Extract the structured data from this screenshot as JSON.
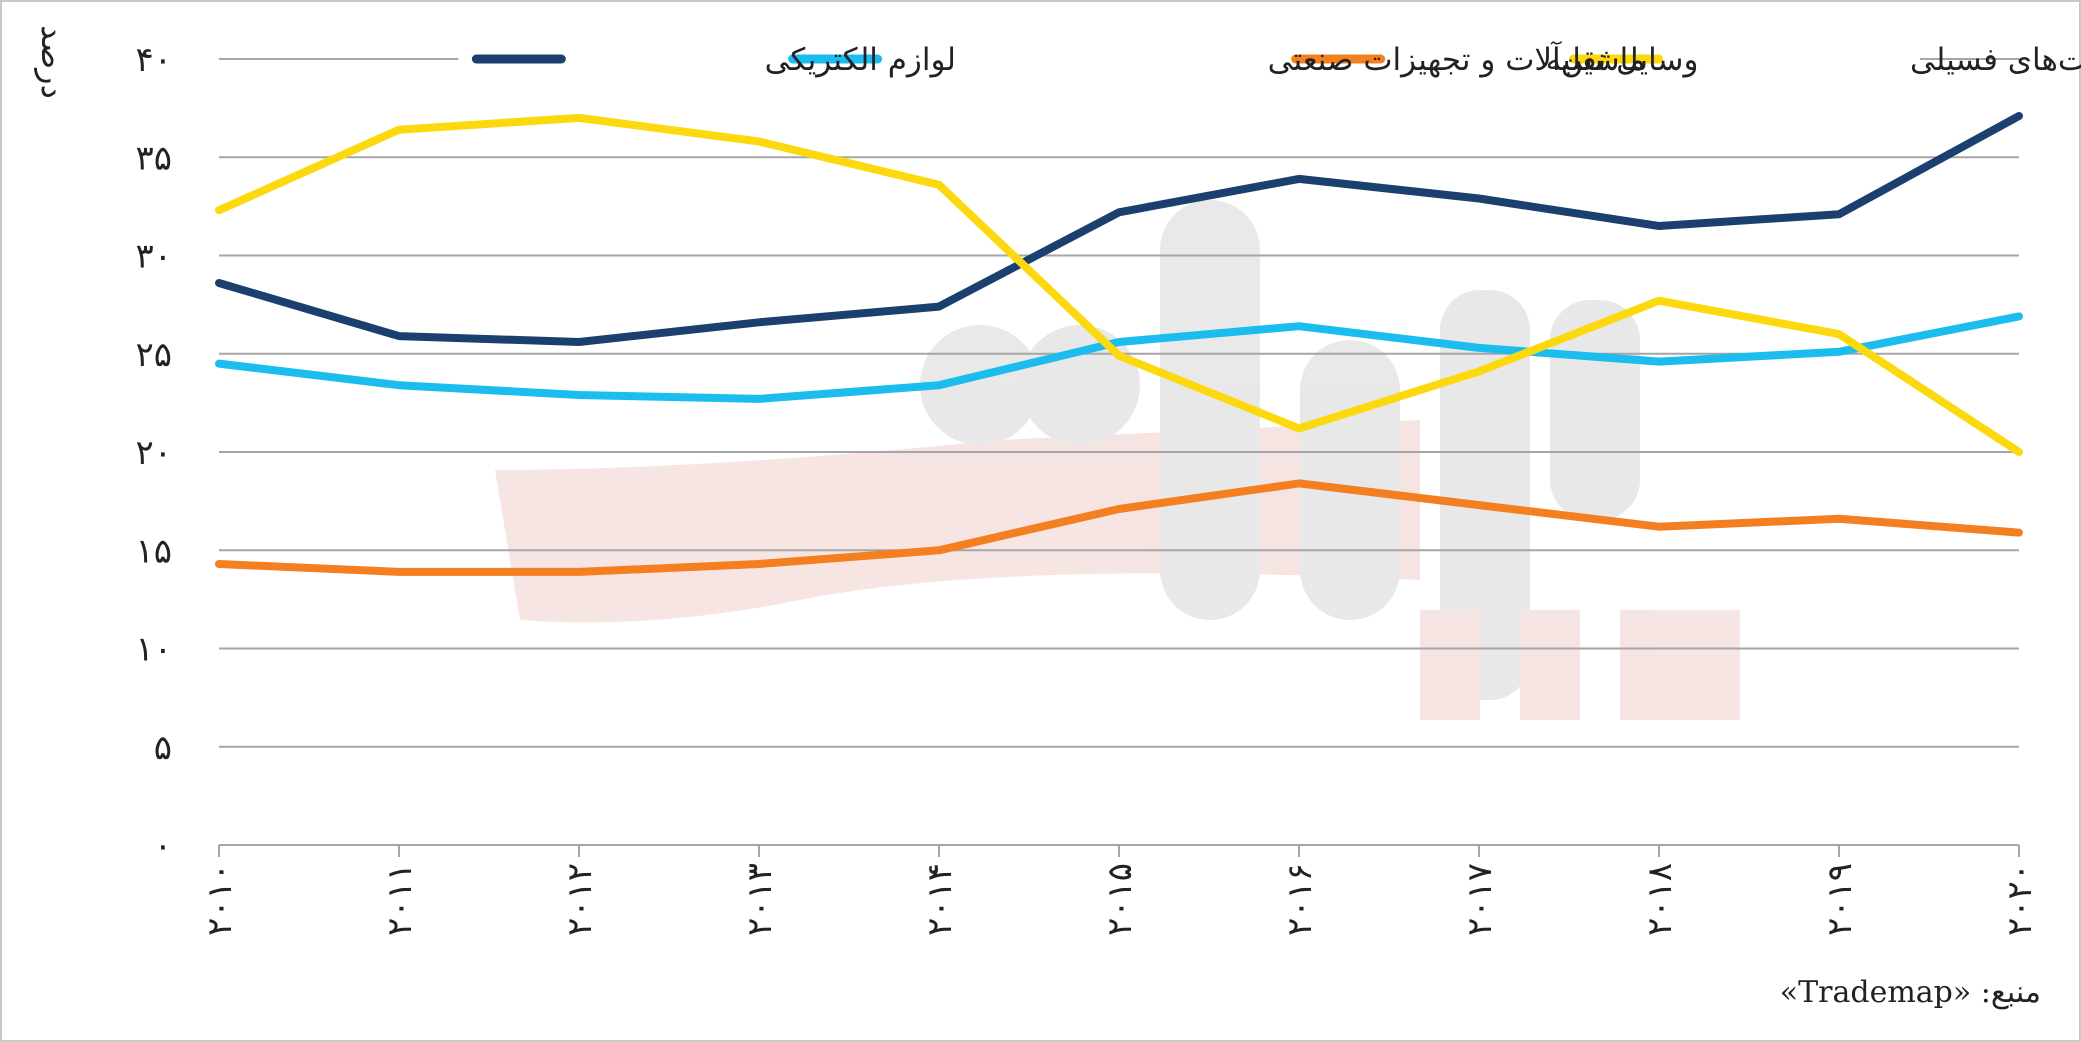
{
  "chart_data": {
    "type": "line",
    "title": "",
    "xlabel": "",
    "ylabel": "درصد",
    "ylim": [
      0,
      40
    ],
    "y_ticks": [
      0,
      5,
      10,
      15,
      20,
      25,
      30,
      35,
      40
    ],
    "y_tick_labels": [
      "۰",
      "۵",
      "۱۰",
      "۱۵",
      "۲۰",
      "۲۵",
      "۳۰",
      "۳۵",
      "۴۰"
    ],
    "x_labels": [
      "۲۰۱۰",
      "۲۰۱۱",
      "۲۰۱۲",
      "۲۰۱۳",
      "۲۰۱۴",
      "۲۰۱۵",
      "۲۰۱۶",
      "۲۰۱۷",
      "۲۰۱۸",
      "۲۰۱۹",
      "۲۰۲۰"
    ],
    "x": [
      2010,
      2011,
      2012,
      2013,
      2014,
      2015,
      2016,
      2017,
      2018,
      2019,
      2020
    ],
    "grid": true,
    "legend_position": "top",
    "series": [
      {
        "name": "لوازم الکتریکی",
        "color": "#1b3f6e",
        "values": [
          28.6,
          25.9,
          25.6,
          26.6,
          27.4,
          32.2,
          33.9,
          32.9,
          31.5,
          32.1,
          37.1
        ]
      },
      {
        "name": "ماشین‌آلات و تجهیزات صنعتی",
        "color": "#1bbcee",
        "values": [
          24.5,
          23.4,
          22.9,
          22.7,
          23.4,
          25.6,
          26.4,
          25.3,
          24.6,
          25.1,
          26.9
        ]
      },
      {
        "name": "وسایل نقلیه",
        "color": "#f47f20",
        "values": [
          14.3,
          13.9,
          13.9,
          14.3,
          15.0,
          17.1,
          18.4,
          17.3,
          16.2,
          16.6,
          15.9
        ]
      },
      {
        "name": "سوخت‌های فسیلی",
        "color": "#fcd90e",
        "values": [
          32.3,
          36.4,
          37.0,
          35.8,
          33.6,
          24.9,
          21.2,
          24.1,
          27.7,
          26.0,
          20.0
        ]
      }
    ]
  },
  "source": "منبع: «Trademap»"
}
